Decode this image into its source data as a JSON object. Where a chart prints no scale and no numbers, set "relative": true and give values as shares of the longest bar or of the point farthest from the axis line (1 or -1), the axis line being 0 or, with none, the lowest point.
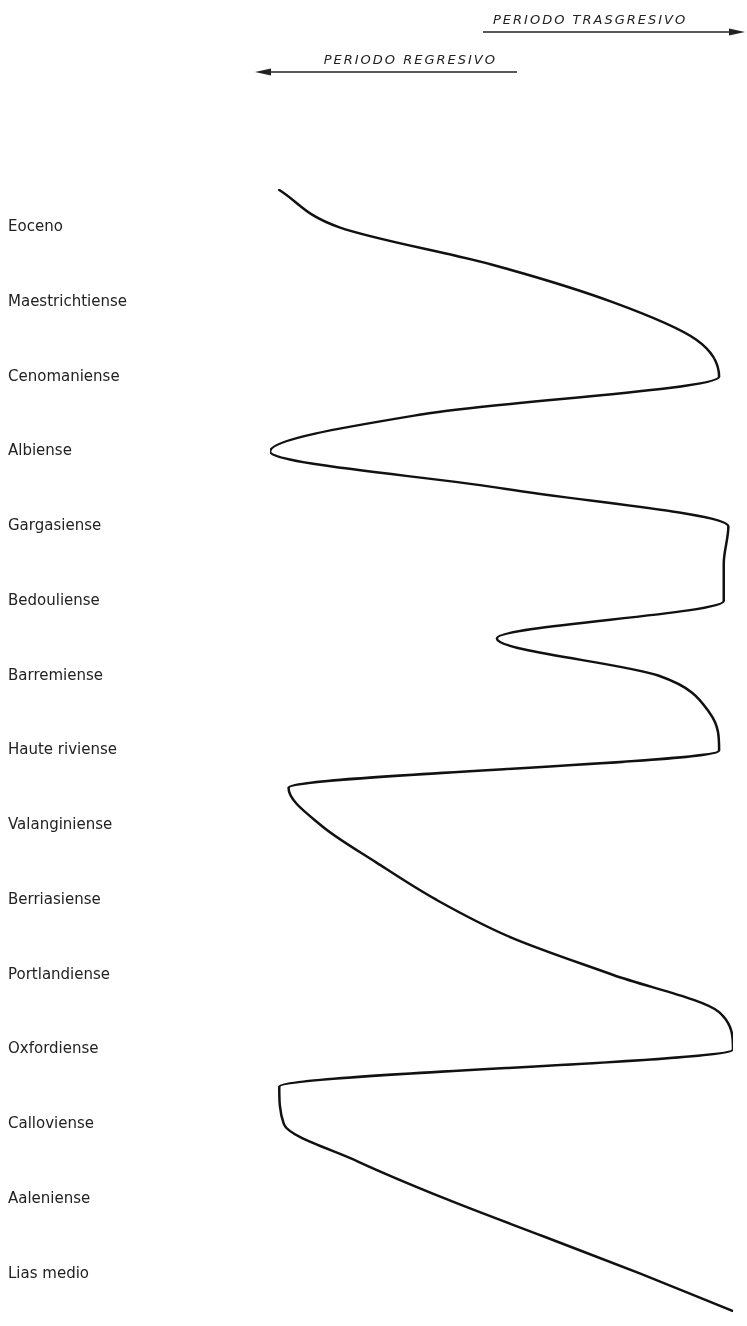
{
  "chart_data": {
    "type": "line",
    "orientation": "horizontal",
    "relative": true,
    "marker": "none",
    "line_style": "solid",
    "legend": false,
    "annotations": [
      "PERIODO TRASGRESIVO",
      "PERIODO REGRESIVO"
    ],
    "categories": [
      null,
      "Eoceno",
      null,
      "Maestrichtiense",
      null,
      "Cenomaniense",
      null,
      "Albiense",
      null,
      "Gargasiense",
      null,
      "Bedouliense",
      null,
      "Barremiense",
      null,
      "Haute riviense",
      null,
      "Valanginiense",
      null,
      "Berriasiense",
      null,
      "Portlandiense",
      null,
      "Oxfordiense",
      null,
      "Calloviense",
      null,
      "Aaleniense",
      null,
      "Lias medio",
      null
    ],
    "series": [
      {
        "color": "#111111",
        "values": [
          0.02,
          0.15,
          0.48,
          0.74,
          0.92,
          0.97,
          0.33,
          0,
          0.51,
          0.99,
          0.98,
          0.98,
          0.49,
          0.84,
          0.95,
          0.97,
          0.04,
          0.11,
          0.23,
          0.36,
          0.52,
          0.74,
          0.97,
          1,
          0.02,
          0.03,
          0.19,
          0.38,
          0.59,
          0.8,
          1
        ]
      }
    ]
  }
}
